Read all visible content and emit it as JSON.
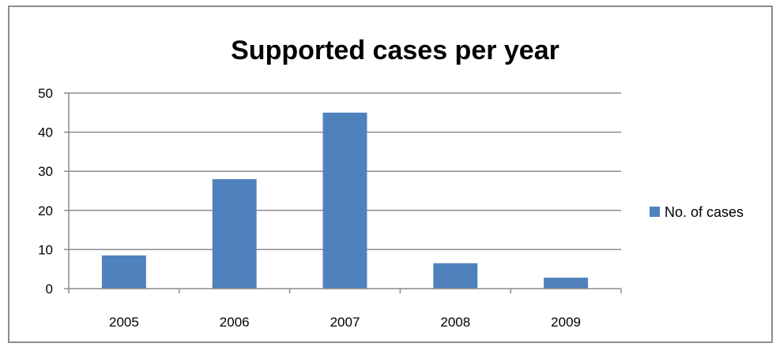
{
  "chart_data": {
    "type": "bar",
    "title": "Supported cases per year",
    "xlabel": "",
    "ylabel": "",
    "categories": [
      "2005",
      "2006",
      "2007",
      "2008",
      "2009"
    ],
    "series": [
      {
        "name": "No. of cases",
        "values": [
          8.5,
          28,
          45,
          6.5,
          2.8
        ],
        "color": "#4f81bd"
      }
    ],
    "ylim": [
      0,
      50
    ],
    "yticks": [
      0,
      10,
      20,
      30,
      40,
      50
    ],
    "grid": true,
    "legend": "right"
  }
}
